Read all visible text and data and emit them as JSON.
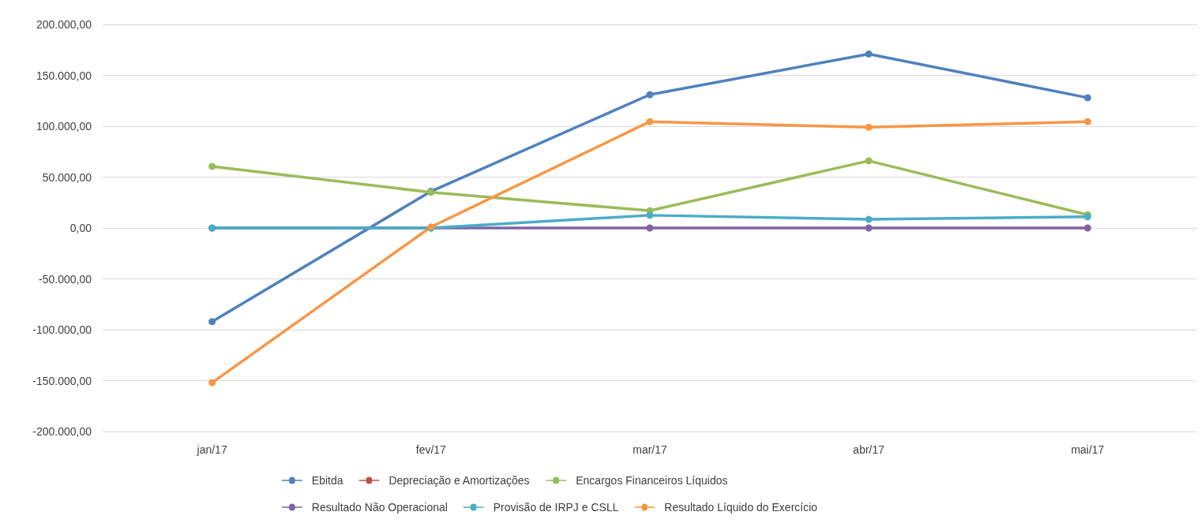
{
  "chart_data": {
    "type": "line",
    "categories": [
      "jan/17",
      "fev/17",
      "mar/17",
      "abr/17",
      "mai/17"
    ],
    "series": [
      {
        "name": "Ebitda",
        "color": "#4f81bd",
        "values": [
          -92000,
          36000,
          131000,
          171000,
          128000
        ]
      },
      {
        "name": "Depreciação e Amortizações",
        "color": "#c0504d",
        "values": [
          null,
          null,
          null,
          null,
          null
        ]
      },
      {
        "name": "Encargos Financeiros Líquidos",
        "color": "#9bbb59",
        "values": [
          60500,
          35000,
          17000,
          66000,
          13000
        ]
      },
      {
        "name": "Resultado Não Operacional",
        "color": "#8064a2",
        "values": [
          0,
          0,
          0,
          0,
          0
        ]
      },
      {
        "name": "Provisão de IRPJ e CSLL",
        "color": "#4bacc6",
        "values": [
          0,
          0,
          12500,
          8500,
          11000
        ]
      },
      {
        "name": "Resultado Líquido do Exercício",
        "color": "#f79646",
        "values": [
          -152000,
          1000,
          104500,
          99000,
          104500
        ]
      }
    ],
    "ylim": [
      -200000,
      200000
    ],
    "yticks": [
      {
        "value": -200000,
        "label": "-200.000,00"
      },
      {
        "value": -150000,
        "label": "-150.000,00"
      },
      {
        "value": -100000,
        "label": "-100.000,00"
      },
      {
        "value": -50000,
        "label": "-50.000,00"
      },
      {
        "value": 0,
        "label": "0,00"
      },
      {
        "value": 50000,
        "label": "50.000,00"
      },
      {
        "value": 100000,
        "label": "100.000,00"
      },
      {
        "value": 150000,
        "label": "150.000,00"
      },
      {
        "value": 200000,
        "label": "200.000,00"
      }
    ],
    "grid": "y",
    "legend": "bottom",
    "marker": "circle",
    "line_style": "solid"
  }
}
